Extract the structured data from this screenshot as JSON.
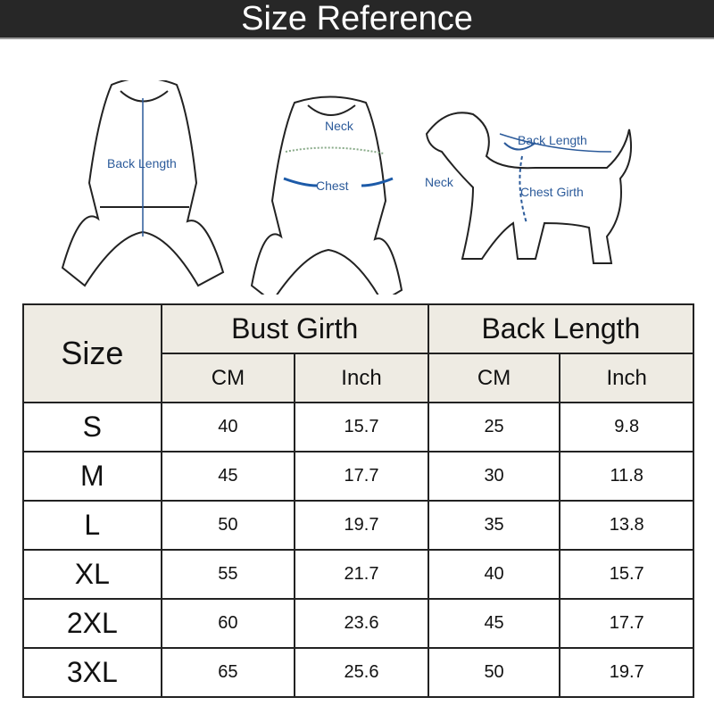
{
  "title": "Size Reference",
  "illustrations": {
    "left_label": "Back Length",
    "middle_labels": [
      "Neck",
      "Chest"
    ],
    "dog_labels": [
      "Back Length",
      "Neck",
      "Chest Girth"
    ]
  },
  "table": {
    "size_header": "Size",
    "groups": [
      "Bust Girth",
      "Back Length"
    ],
    "units": [
      "CM",
      "Inch",
      "CM",
      "Inch"
    ],
    "rows": [
      {
        "size": "S",
        "values": [
          "40",
          "15.7",
          "25",
          "9.8"
        ]
      },
      {
        "size": "M",
        "values": [
          "45",
          "17.7",
          "30",
          "11.8"
        ]
      },
      {
        "size": "L",
        "values": [
          "50",
          "19.7",
          "35",
          "13.8"
        ]
      },
      {
        "size": "XL",
        "values": [
          "55",
          "21.7",
          "40",
          "15.7"
        ]
      },
      {
        "size": "2XL",
        "values": [
          "60",
          "23.6",
          "45",
          "17.7"
        ]
      },
      {
        "size": "3XL",
        "values": [
          "65",
          "25.6",
          "50",
          "19.7"
        ]
      }
    ]
  }
}
